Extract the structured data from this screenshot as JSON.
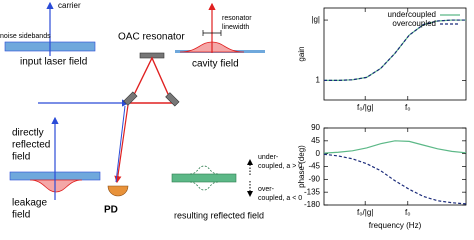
{
  "diagram": {
    "carrier": "carrier",
    "noise_sidebands": "noise sidebands",
    "input_laser_field": "input laser field",
    "oac_resonator": "OAC resonator",
    "resonator_linewidth": {
      "lines": [
        "resonator",
        "linewidth"
      ]
    },
    "cavity_field": "cavity field",
    "directly_reflected_field": {
      "lines": [
        "directly",
        "reflected",
        "field"
      ]
    },
    "leakage_field": {
      "lines": [
        "leakage",
        "field"
      ]
    },
    "pd": "PD",
    "under_coupled": {
      "lines": [
        "under-",
        "coupled, a > 0"
      ]
    },
    "over_coupled": {
      "lines": [
        "over-",
        "coupled, a < 0"
      ]
    },
    "resulting_reflected_field": "resulting reflected field"
  },
  "chart_data": [
    {
      "type": "line",
      "ylabel": "gain",
      "x": [
        0,
        0.1,
        0.2,
        0.3,
        0.4,
        0.5,
        0.6,
        0.7,
        0.8,
        0.9,
        1
      ],
      "xlim": [
        0,
        1
      ],
      "ylim": [
        0.35,
        3.4
      ],
      "xticks": [
        {
          "value": 0.29,
          "label": "f₀/|g|"
        },
        {
          "value": 0.59,
          "label": "f₀"
        }
      ],
      "yticks": [
        1,
        {
          "value": 3,
          "label": "|g|"
        }
      ],
      "legend": "upper right",
      "grid": false,
      "series": [
        {
          "name": "undercoupled",
          "color": "#5cb887",
          "style": "solid",
          "values": [
            1,
            1,
            1.02,
            1.1,
            1.4,
            1.9,
            2.5,
            2.85,
            2.97,
            3,
            3
          ]
        },
        {
          "name": "overcoupled",
          "color": "#1a2a7a",
          "style": "dashed",
          "values": [
            1,
            1,
            1.02,
            1.1,
            1.4,
            1.9,
            2.5,
            2.85,
            2.97,
            3,
            3
          ]
        }
      ]
    },
    {
      "type": "line",
      "ylabel": "phase (deg)",
      "xlabel": "frequency (Hz)",
      "x": [
        0,
        0.1,
        0.2,
        0.3,
        0.4,
        0.5,
        0.6,
        0.7,
        0.8,
        0.9,
        1
      ],
      "xlim": [
        0,
        1
      ],
      "ylim": [
        -180,
        90
      ],
      "xticks": [
        {
          "value": 0.29,
          "label": "f₀/|g|"
        },
        {
          "value": 0.59,
          "label": "f₀"
        }
      ],
      "yticks": [
        90,
        45,
        0,
        -45,
        -90,
        -135,
        -180
      ],
      "grid": false,
      "series": [
        {
          "color": "#5cb887",
          "style": "solid",
          "values": [
            2,
            5,
            10,
            20,
            35,
            45,
            43,
            30,
            17,
            8,
            3
          ]
        },
        {
          "color": "#1a2a7a",
          "style": "dashed",
          "values": [
            -2,
            -8,
            -18,
            -35,
            -60,
            -95,
            -125,
            -150,
            -165,
            -172,
            -176
          ]
        }
      ]
    }
  ]
}
